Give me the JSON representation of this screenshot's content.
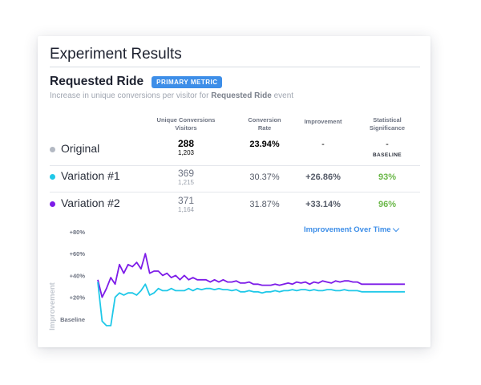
{
  "card": {
    "title": "Experiment Results",
    "metric_name": "Requested Ride",
    "badge": "PRIMARY METRIC",
    "desc_prefix": "Increase in unique conversions per visitor for ",
    "desc_bold": "Requested Ride",
    "desc_suffix": " event"
  },
  "table": {
    "headers": {
      "unique_conversions_line1": "Unique Conversions",
      "unique_conversions_line2": "Visitors",
      "conversion_rate_line1": "Conversion",
      "conversion_rate_line2": "Rate",
      "improvement": "Improvement",
      "significance_line1": "Statistical",
      "significance_line2": "Significance"
    },
    "rows": [
      {
        "name": "Original",
        "conversions": "288",
        "visitors": "1,203",
        "rate": "23.94%",
        "improvement": "-",
        "significance": "-",
        "significance_sub": "BASELINE",
        "color": "#b3b9c3"
      },
      {
        "name": "Variation #1",
        "conversions": "369",
        "visitors": "1,215",
        "rate": "30.37%",
        "improvement": "+26.86%",
        "significance": "93%",
        "color": "#1fc8e8"
      },
      {
        "name": "Variation #2",
        "conversions": "371",
        "visitors": "1,164",
        "rate": "31.87%",
        "improvement": "+33.14%",
        "significance": "96%",
        "color": "#7d1ce8"
      }
    ],
    "significance_color": "#6cb84a"
  },
  "chart_toggle": {
    "label": "Improvement Over Time"
  },
  "chart_data": {
    "type": "line",
    "ylabel": "Improvement",
    "y_ticks": [
      "+80%",
      "+60%",
      "+40%",
      "+20%"
    ],
    "baseline_label": "Baseline",
    "ylim": [
      -20,
      80
    ],
    "series": [
      {
        "color": "#7d1ce8",
        "values": [
          36,
          20,
          28,
          38,
          32,
          50,
          42,
          50,
          48,
          52,
          46,
          60,
          42,
          44,
          44,
          40,
          42,
          38,
          40,
          36,
          40,
          36,
          38,
          36,
          36,
          36,
          34,
          36,
          34,
          36,
          34,
          34,
          35,
          33,
          33,
          34,
          32,
          32,
          31,
          31,
          31,
          32,
          31,
          32,
          33,
          32,
          34,
          33,
          34,
          32,
          34,
          33,
          35,
          34,
          33,
          35,
          34,
          35,
          35,
          34,
          34,
          32,
          32,
          32,
          32,
          32,
          32,
          32,
          32,
          32,
          32,
          32
        ]
      },
      {
        "color": "#1fc8e8",
        "values": [
          34,
          -2,
          -6,
          -6,
          20,
          24,
          22,
          24,
          24,
          22,
          26,
          32,
          22,
          24,
          28,
          26,
          26,
          28,
          26,
          26,
          26,
          28,
          26,
          28,
          27,
          28,
          28,
          27,
          28,
          27,
          27,
          26,
          27,
          25,
          25,
          26,
          25,
          25,
          24,
          25,
          25,
          26,
          25,
          26,
          26,
          27,
          26,
          27,
          27,
          26,
          27,
          26,
          26,
          27,
          27,
          26,
          26,
          27,
          26,
          26,
          26,
          25,
          25,
          25,
          25,
          25,
          25,
          25,
          25,
          25,
          25,
          25
        ]
      }
    ]
  }
}
